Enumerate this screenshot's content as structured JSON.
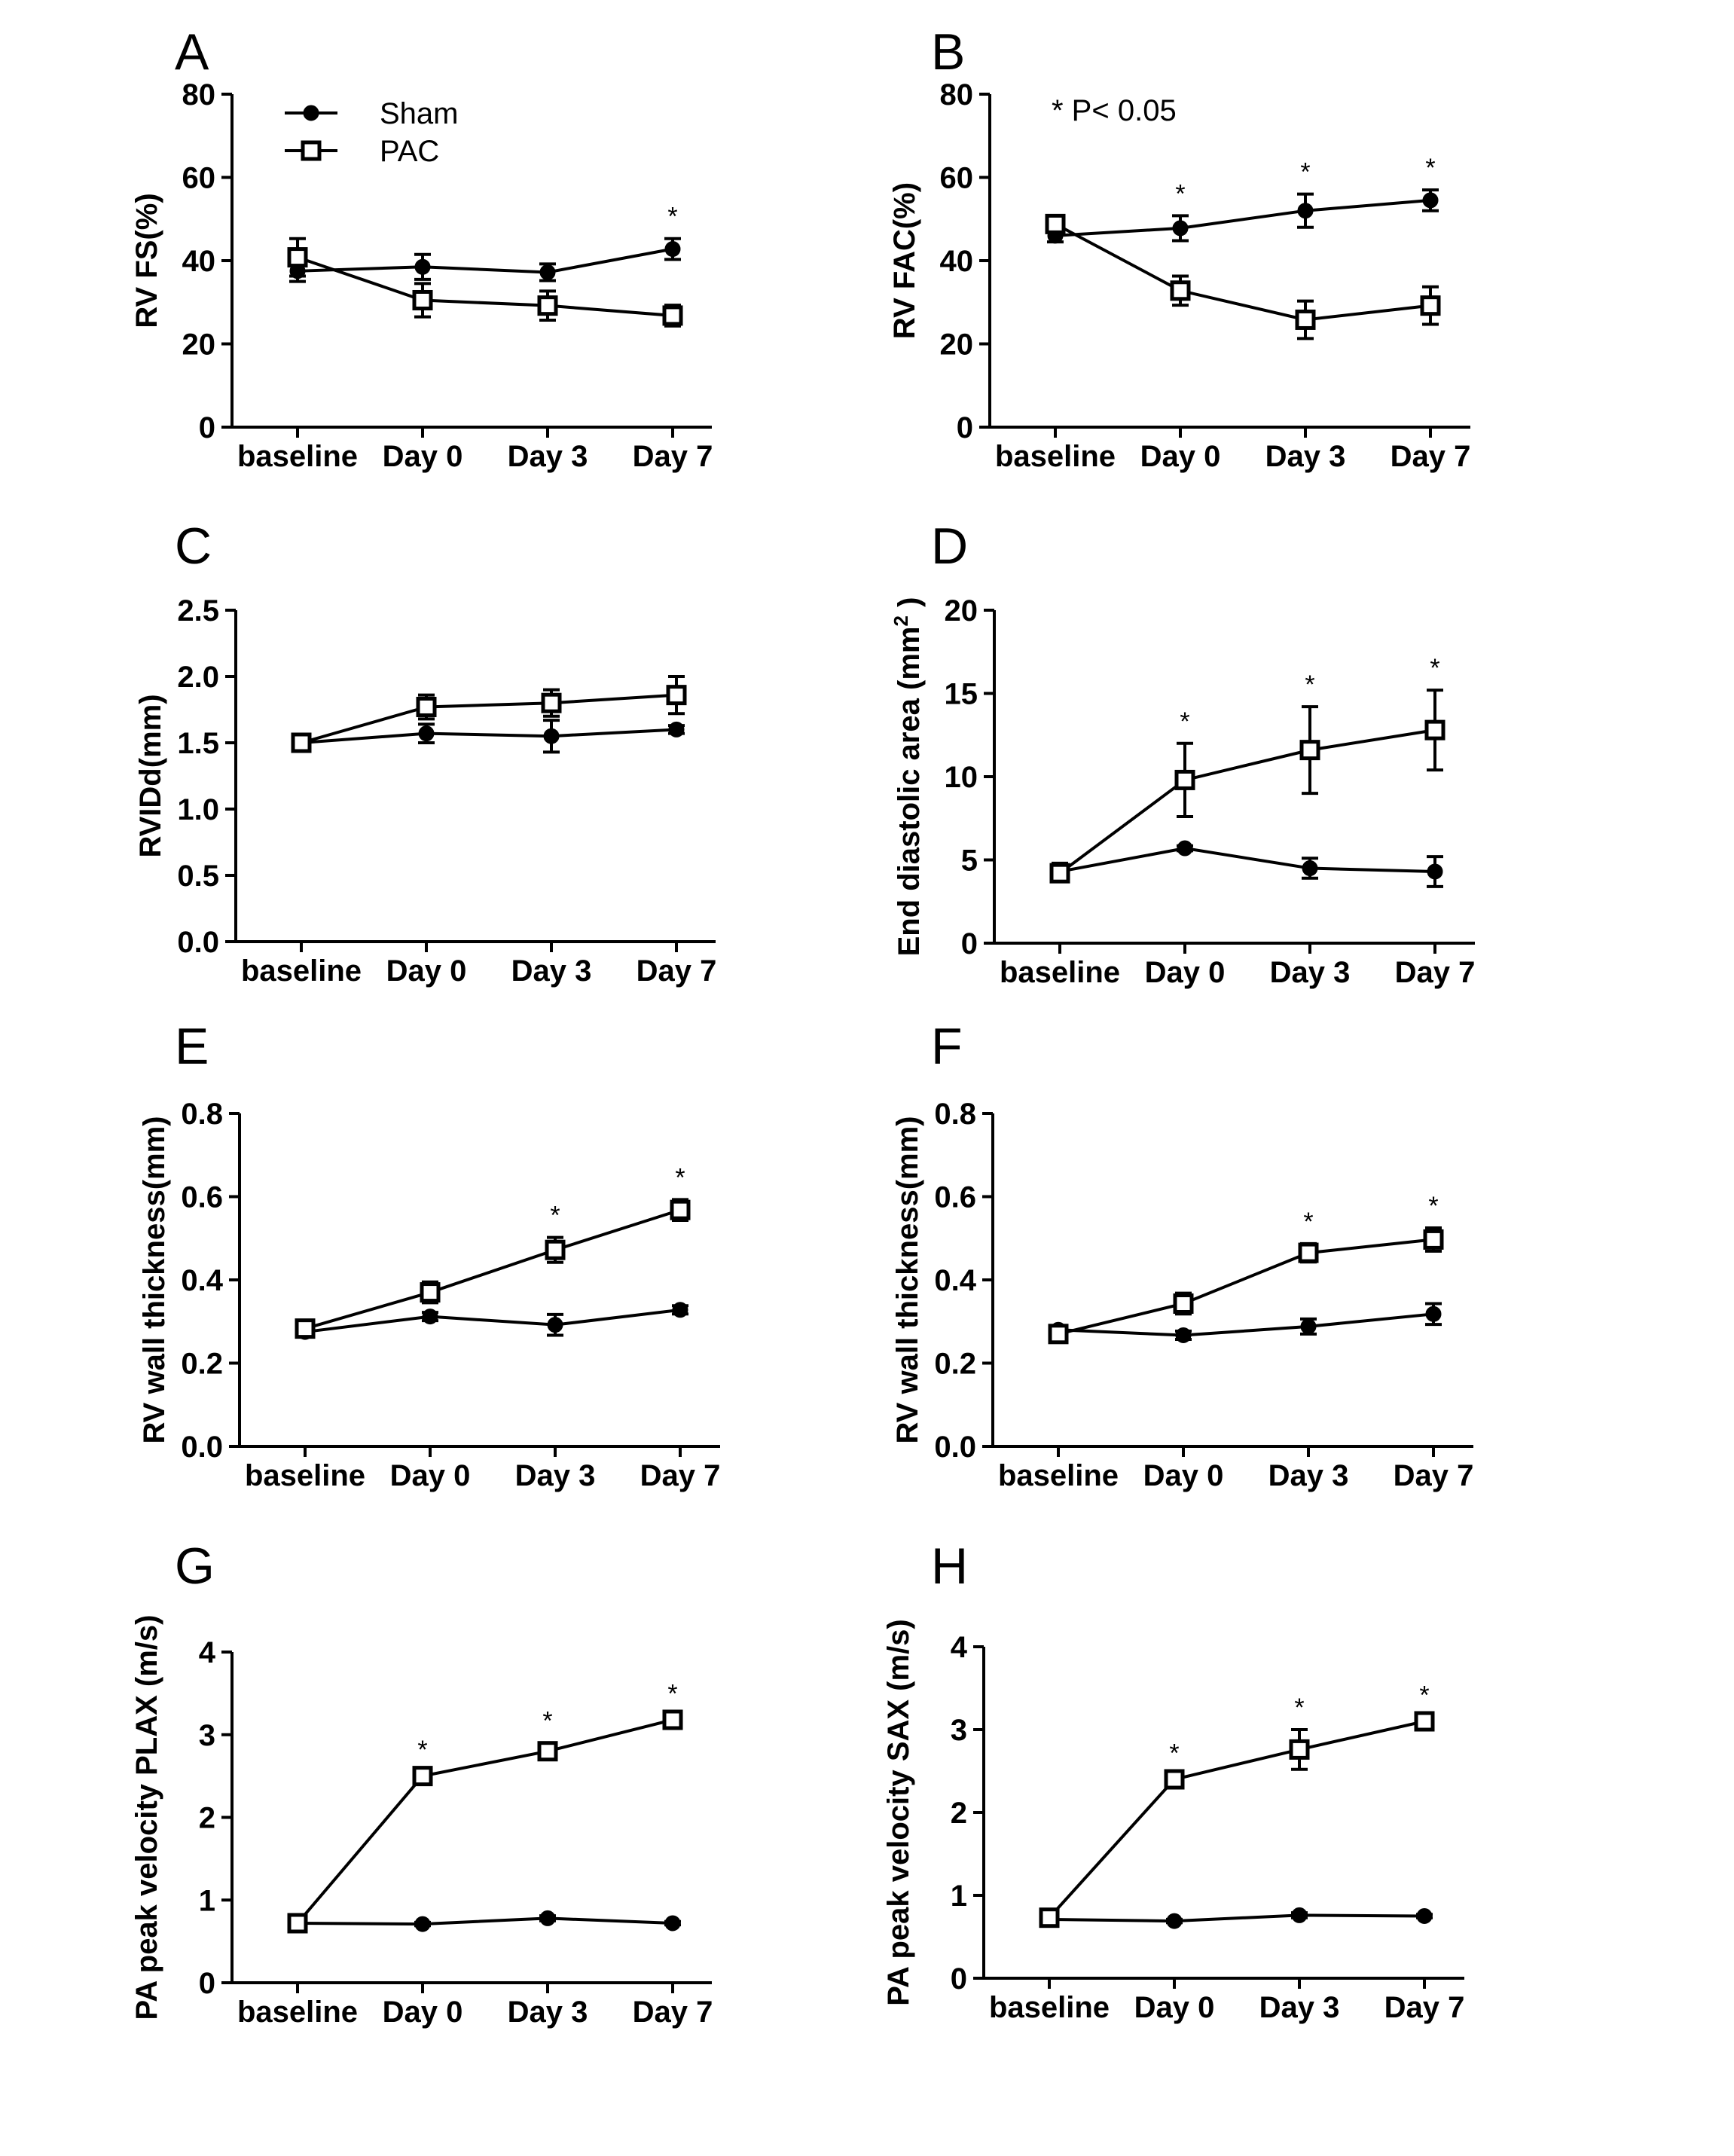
{
  "figure": {
    "legend": {
      "sham": "Sham",
      "pac": "PAC"
    },
    "note": "* P< 0.05"
  },
  "chart_data": [
    {
      "type": "line",
      "panel": "A",
      "ylabel": "RV FS(%)",
      "xlabel": "",
      "categories": [
        "baseline",
        "Day 0",
        "Day 3",
        "Day 7"
      ],
      "ylim": [
        0,
        80
      ],
      "yticks": [
        "0",
        "20",
        "40",
        "60",
        "80"
      ],
      "series": [
        {
          "name": "Sham",
          "values": [
            37.5,
            38.5,
            37.2,
            42.8
          ],
          "err": [
            2.5,
            3.0,
            2.0,
            2.5
          ]
        },
        {
          "name": "PAC",
          "values": [
            40.8,
            30.5,
            29.2,
            26.8
          ],
          "err": [
            4.5,
            4.0,
            3.5,
            2.5
          ]
        }
      ],
      "significance": [
        false,
        false,
        false,
        true
      ]
    },
    {
      "type": "line",
      "panel": "B",
      "ylabel": "RV FAC(%)",
      "xlabel": "",
      "categories": [
        "baseline",
        "Day 0",
        "Day 3",
        "Day 7"
      ],
      "ylim": [
        0,
        80
      ],
      "yticks": [
        "0",
        "20",
        "40",
        "60",
        "80"
      ],
      "series": [
        {
          "name": "Sham",
          "values": [
            46.0,
            47.8,
            52.0,
            54.5
          ],
          "err": [
            1.5,
            3.0,
            4.0,
            2.5
          ]
        },
        {
          "name": "PAC",
          "values": [
            48.8,
            32.8,
            25.8,
            29.2
          ],
          "err": [
            2.0,
            3.5,
            4.5,
            4.5
          ]
        }
      ],
      "significance": [
        false,
        true,
        true,
        true
      ]
    },
    {
      "type": "line",
      "panel": "C",
      "ylabel": "RVIDd(mm)",
      "xlabel": "",
      "categories": [
        "baseline",
        "Day 0",
        "Day 3",
        "Day 7"
      ],
      "ylim": [
        0,
        2.5
      ],
      "yticks": [
        "0.0",
        "0.5",
        "1.0",
        "1.5",
        "2.0",
        "2.5"
      ],
      "series": [
        {
          "name": "Sham",
          "values": [
            1.5,
            1.57,
            1.55,
            1.6
          ],
          "err": [
            0.04,
            0.07,
            0.12,
            0.03
          ]
        },
        {
          "name": "PAC",
          "values": [
            1.5,
            1.77,
            1.8,
            1.86
          ],
          "err": [
            0.05,
            0.09,
            0.1,
            0.14
          ]
        }
      ],
      "significance": [
        false,
        false,
        false,
        false
      ]
    },
    {
      "type": "line",
      "panel": "D",
      "ylabel": "End diastolic area (mm",
      "ylabel_sup": "2",
      "ylabel_end": ")",
      "xlabel": "",
      "categories": [
        "baseline",
        "Day 0",
        "Day 3",
        "Day 7"
      ],
      "ylim": [
        0,
        20
      ],
      "yticks": [
        "0",
        "5",
        "10",
        "15",
        "20"
      ],
      "series": [
        {
          "name": "Sham",
          "values": [
            4.3,
            5.7,
            4.5,
            4.3
          ],
          "err": [
            0.5,
            0.15,
            0.6,
            0.9
          ]
        },
        {
          "name": "PAC",
          "values": [
            4.2,
            9.8,
            11.6,
            12.8
          ],
          "err": [
            0.4,
            2.2,
            2.6,
            2.4
          ]
        }
      ],
      "significance": [
        false,
        true,
        true,
        true
      ]
    },
    {
      "type": "line",
      "panel": "E",
      "ylabel": "RV wall thickness(mm)",
      "xlabel": "",
      "categories": [
        "baseline",
        "Day 0",
        "Day 3",
        "Day 7"
      ],
      "ylim": [
        0,
        0.8
      ],
      "yticks": [
        "0.0",
        "0.2",
        "0.4",
        "0.6",
        "0.8"
      ],
      "series": [
        {
          "name": "Sham",
          "values": [
            0.275,
            0.312,
            0.292,
            0.328
          ],
          "err": [
            0.01,
            0.01,
            0.025,
            0.01
          ]
        },
        {
          "name": "PAC",
          "values": [
            0.283,
            0.37,
            0.472,
            0.568
          ],
          "err": [
            0.01,
            0.025,
            0.03,
            0.025
          ]
        }
      ],
      "significance": [
        false,
        false,
        true,
        true
      ]
    },
    {
      "type": "line",
      "panel": "F",
      "ylabel": "RV wall thickness(mm)",
      "xlabel": "",
      "categories": [
        "baseline",
        "Day 0",
        "Day 3",
        "Day 7"
      ],
      "ylim": [
        0,
        0.8
      ],
      "yticks": [
        "0.0",
        "0.2",
        "0.4",
        "0.6",
        "0.8"
      ],
      "series": [
        {
          "name": "Sham",
          "values": [
            0.28,
            0.267,
            0.288,
            0.318
          ],
          "err": [
            0.01,
            0.01,
            0.018,
            0.025
          ]
        },
        {
          "name": "PAC",
          "values": [
            0.27,
            0.343,
            0.465,
            0.497
          ],
          "err": [
            0.015,
            0.025,
            0.022,
            0.028
          ]
        }
      ],
      "significance": [
        false,
        false,
        true,
        true
      ]
    },
    {
      "type": "line",
      "panel": "G",
      "ylabel": "PA peak velocity PLAX (m/s)",
      "xlabel": "",
      "categories": [
        "baseline",
        "Day 0",
        "Day 3",
        "Day 7"
      ],
      "ylim": [
        0,
        4
      ],
      "yticks": [
        "0",
        "1",
        "2",
        "3",
        "4"
      ],
      "series": [
        {
          "name": "Sham",
          "values": [
            0.72,
            0.71,
            0.78,
            0.72
          ],
          "err": [
            0.02,
            0.02,
            0.03,
            0.02
          ]
        },
        {
          "name": "PAC",
          "values": [
            0.72,
            2.5,
            2.8,
            3.18
          ],
          "err": [
            0.04,
            0.05,
            0.1,
            0.05
          ]
        }
      ],
      "significance": [
        false,
        true,
        true,
        true
      ]
    },
    {
      "type": "line",
      "panel": "H",
      "ylabel": "PA peak velocity SAX (m/s)",
      "xlabel": "",
      "categories": [
        "baseline",
        "Day 0",
        "Day 3",
        "Day 7"
      ],
      "ylim": [
        0,
        4
      ],
      "yticks": [
        "0",
        "1",
        "2",
        "3",
        "4"
      ],
      "series": [
        {
          "name": "Sham",
          "values": [
            0.71,
            0.69,
            0.76,
            0.75
          ],
          "err": [
            0.02,
            0.02,
            0.03,
            0.02
          ]
        },
        {
          "name": "PAC",
          "values": [
            0.73,
            2.4,
            2.76,
            3.1
          ],
          "err": [
            0.05,
            0.05,
            0.24,
            0.05
          ]
        }
      ],
      "significance": [
        false,
        true,
        true,
        true
      ]
    }
  ]
}
